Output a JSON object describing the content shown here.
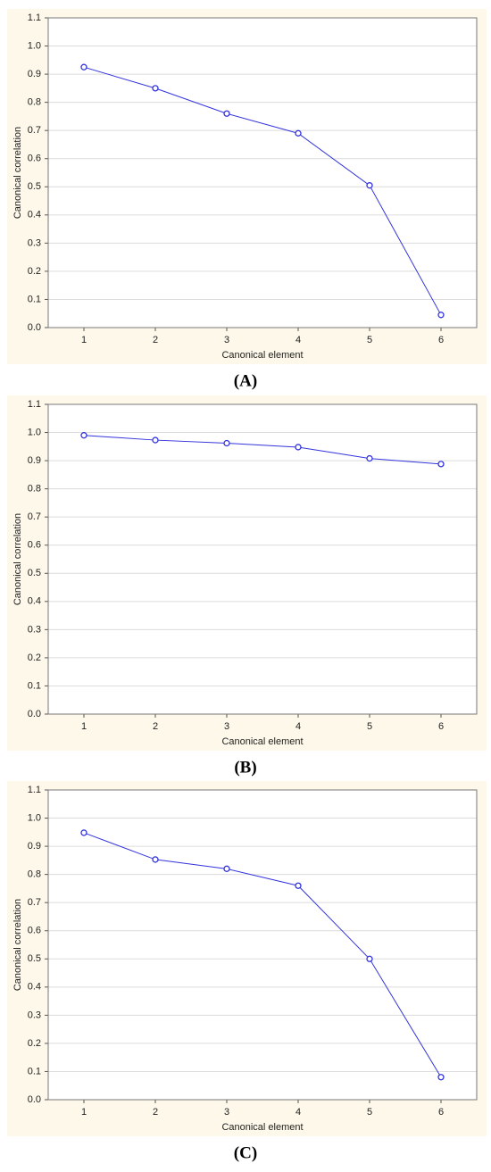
{
  "chart_data": [
    {
      "type": "line",
      "caption": "(A)",
      "x_label": "Canonical element",
      "y_label": "Canonical correlation",
      "x": [
        1,
        2,
        3,
        4,
        5,
        6
      ],
      "values": [
        0.925,
        0.85,
        0.76,
        0.69,
        0.505,
        0.045
      ],
      "color": "#3333dd",
      "xlim": [
        0.5,
        6.5
      ],
      "xticks": [
        1,
        2,
        3,
        4,
        5,
        6
      ],
      "ylim": [
        0,
        1.1
      ],
      "yticks": [
        {
          "value": 0,
          "label": "0.0"
        },
        0.1,
        0.2,
        0.3,
        0.4,
        0.5,
        0.6,
        0.7,
        0.8,
        0.9,
        {
          "value": 1,
          "label": "1.0"
        },
        1.1
      ],
      "grid": true
    },
    {
      "type": "line",
      "caption": "(B)",
      "x_label": "Canonical element",
      "y_label": "Canonical correlation",
      "x": [
        1,
        2,
        3,
        4,
        5,
        6
      ],
      "values": [
        0.99,
        0.973,
        0.962,
        0.948,
        0.908,
        0.888
      ],
      "color": "#3333dd",
      "xlim": [
        0.5,
        6.5
      ],
      "xticks": [
        1,
        2,
        3,
        4,
        5,
        6
      ],
      "ylim": [
        0,
        1.1
      ],
      "yticks": [
        {
          "value": 0,
          "label": "0.0"
        },
        0.1,
        0.2,
        0.3,
        0.4,
        0.5,
        0.6,
        0.7,
        0.8,
        0.9,
        {
          "value": 1,
          "label": "1.0"
        },
        1.1
      ],
      "grid": true
    },
    {
      "type": "line",
      "caption": "(C)",
      "x_label": "Canonical element",
      "y_label": "Canonical correlation",
      "x": [
        1,
        2,
        3,
        4,
        5,
        6
      ],
      "values": [
        0.948,
        0.853,
        0.82,
        0.76,
        0.5,
        0.08
      ],
      "color": "#3333dd",
      "xlim": [
        0.5,
        6.5
      ],
      "xticks": [
        1,
        2,
        3,
        4,
        5,
        6
      ],
      "ylim": [
        0,
        1.1
      ],
      "yticks": [
        {
          "value": 0,
          "label": "0.0"
        },
        0.1,
        0.2,
        0.3,
        0.4,
        0.5,
        0.6,
        0.7,
        0.8,
        0.9,
        {
          "value": 1,
          "label": "1.0"
        },
        1.1
      ],
      "grid": true
    }
  ]
}
